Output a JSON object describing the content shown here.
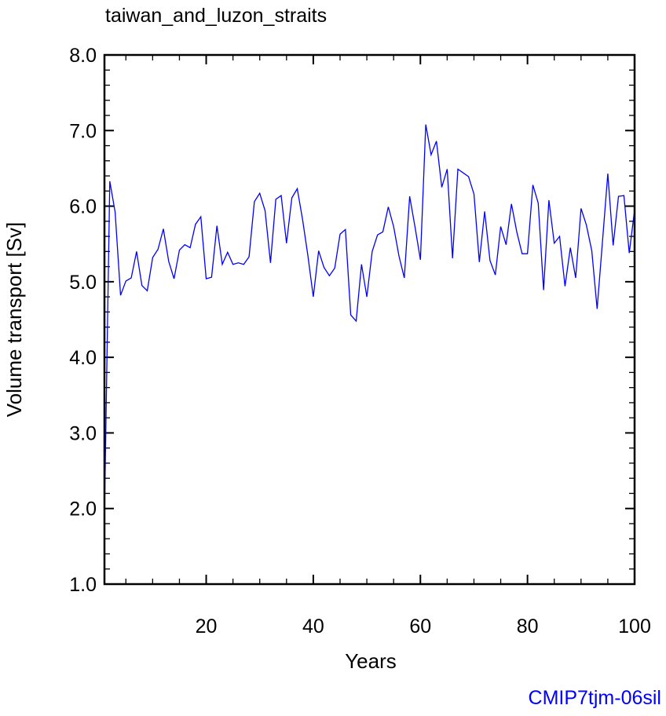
{
  "chart_data": {
    "type": "line",
    "title": "taiwan_and_luzon_straits",
    "xlabel": "Years",
    "ylabel": "Volume transport [Sv]",
    "xlim": [
      1,
      100
    ],
    "ylim": [
      1.0,
      8.0
    ],
    "x_ticks": [
      20,
      40,
      60,
      80,
      100
    ],
    "x_tick_labels": [
      "20",
      "40",
      "60",
      "80",
      "100"
    ],
    "y_ticks": [
      1,
      2,
      3,
      4,
      5,
      6,
      7,
      8
    ],
    "y_tick_labels": [
      "1.0",
      "2.0",
      "3.0",
      "4.0",
      "5.0",
      "6.0",
      "7.0",
      "8.0"
    ],
    "grid": false,
    "series": [
      {
        "name": "volume transport",
        "color": "#0000ff",
        "x_start": 1,
        "values": [
          1.9,
          6.33,
          5.92,
          4.82,
          5.01,
          5.05,
          5.4,
          4.95,
          4.88,
          5.32,
          5.43,
          5.7,
          5.27,
          5.04,
          5.42,
          5.49,
          5.45,
          5.76,
          5.86,
          5.04,
          5.06,
          5.74,
          5.23,
          5.39,
          5.23,
          5.25,
          5.23,
          5.33,
          6.06,
          6.17,
          5.94,
          5.25,
          6.09,
          6.14,
          5.51,
          6.11,
          6.23,
          5.82,
          5.34,
          4.8,
          5.41,
          5.19,
          5.08,
          5.18,
          5.63,
          5.69,
          4.56,
          4.48,
          5.23,
          4.8,
          5.4,
          5.62,
          5.66,
          5.99,
          5.73,
          5.34,
          5.05,
          6.13,
          5.72,
          5.29,
          7.08,
          6.68,
          6.86,
          6.25,
          6.49,
          5.31,
          6.49,
          6.44,
          6.39,
          6.16,
          5.26,
          5.93,
          5.28,
          5.09,
          5.73,
          5.49,
          6.03,
          5.66,
          5.37,
          5.37,
          6.28,
          6.04,
          4.89,
          6.08,
          5.51,
          5.6,
          4.94,
          5.45,
          5.05,
          5.97,
          5.75,
          5.41,
          4.64,
          5.53,
          6.43,
          5.48,
          6.13,
          6.14,
          5.38,
          5.95
        ]
      }
    ],
    "annotation": {
      "text": "CMIP7tjm-06sil",
      "color": "#0000ff"
    }
  }
}
